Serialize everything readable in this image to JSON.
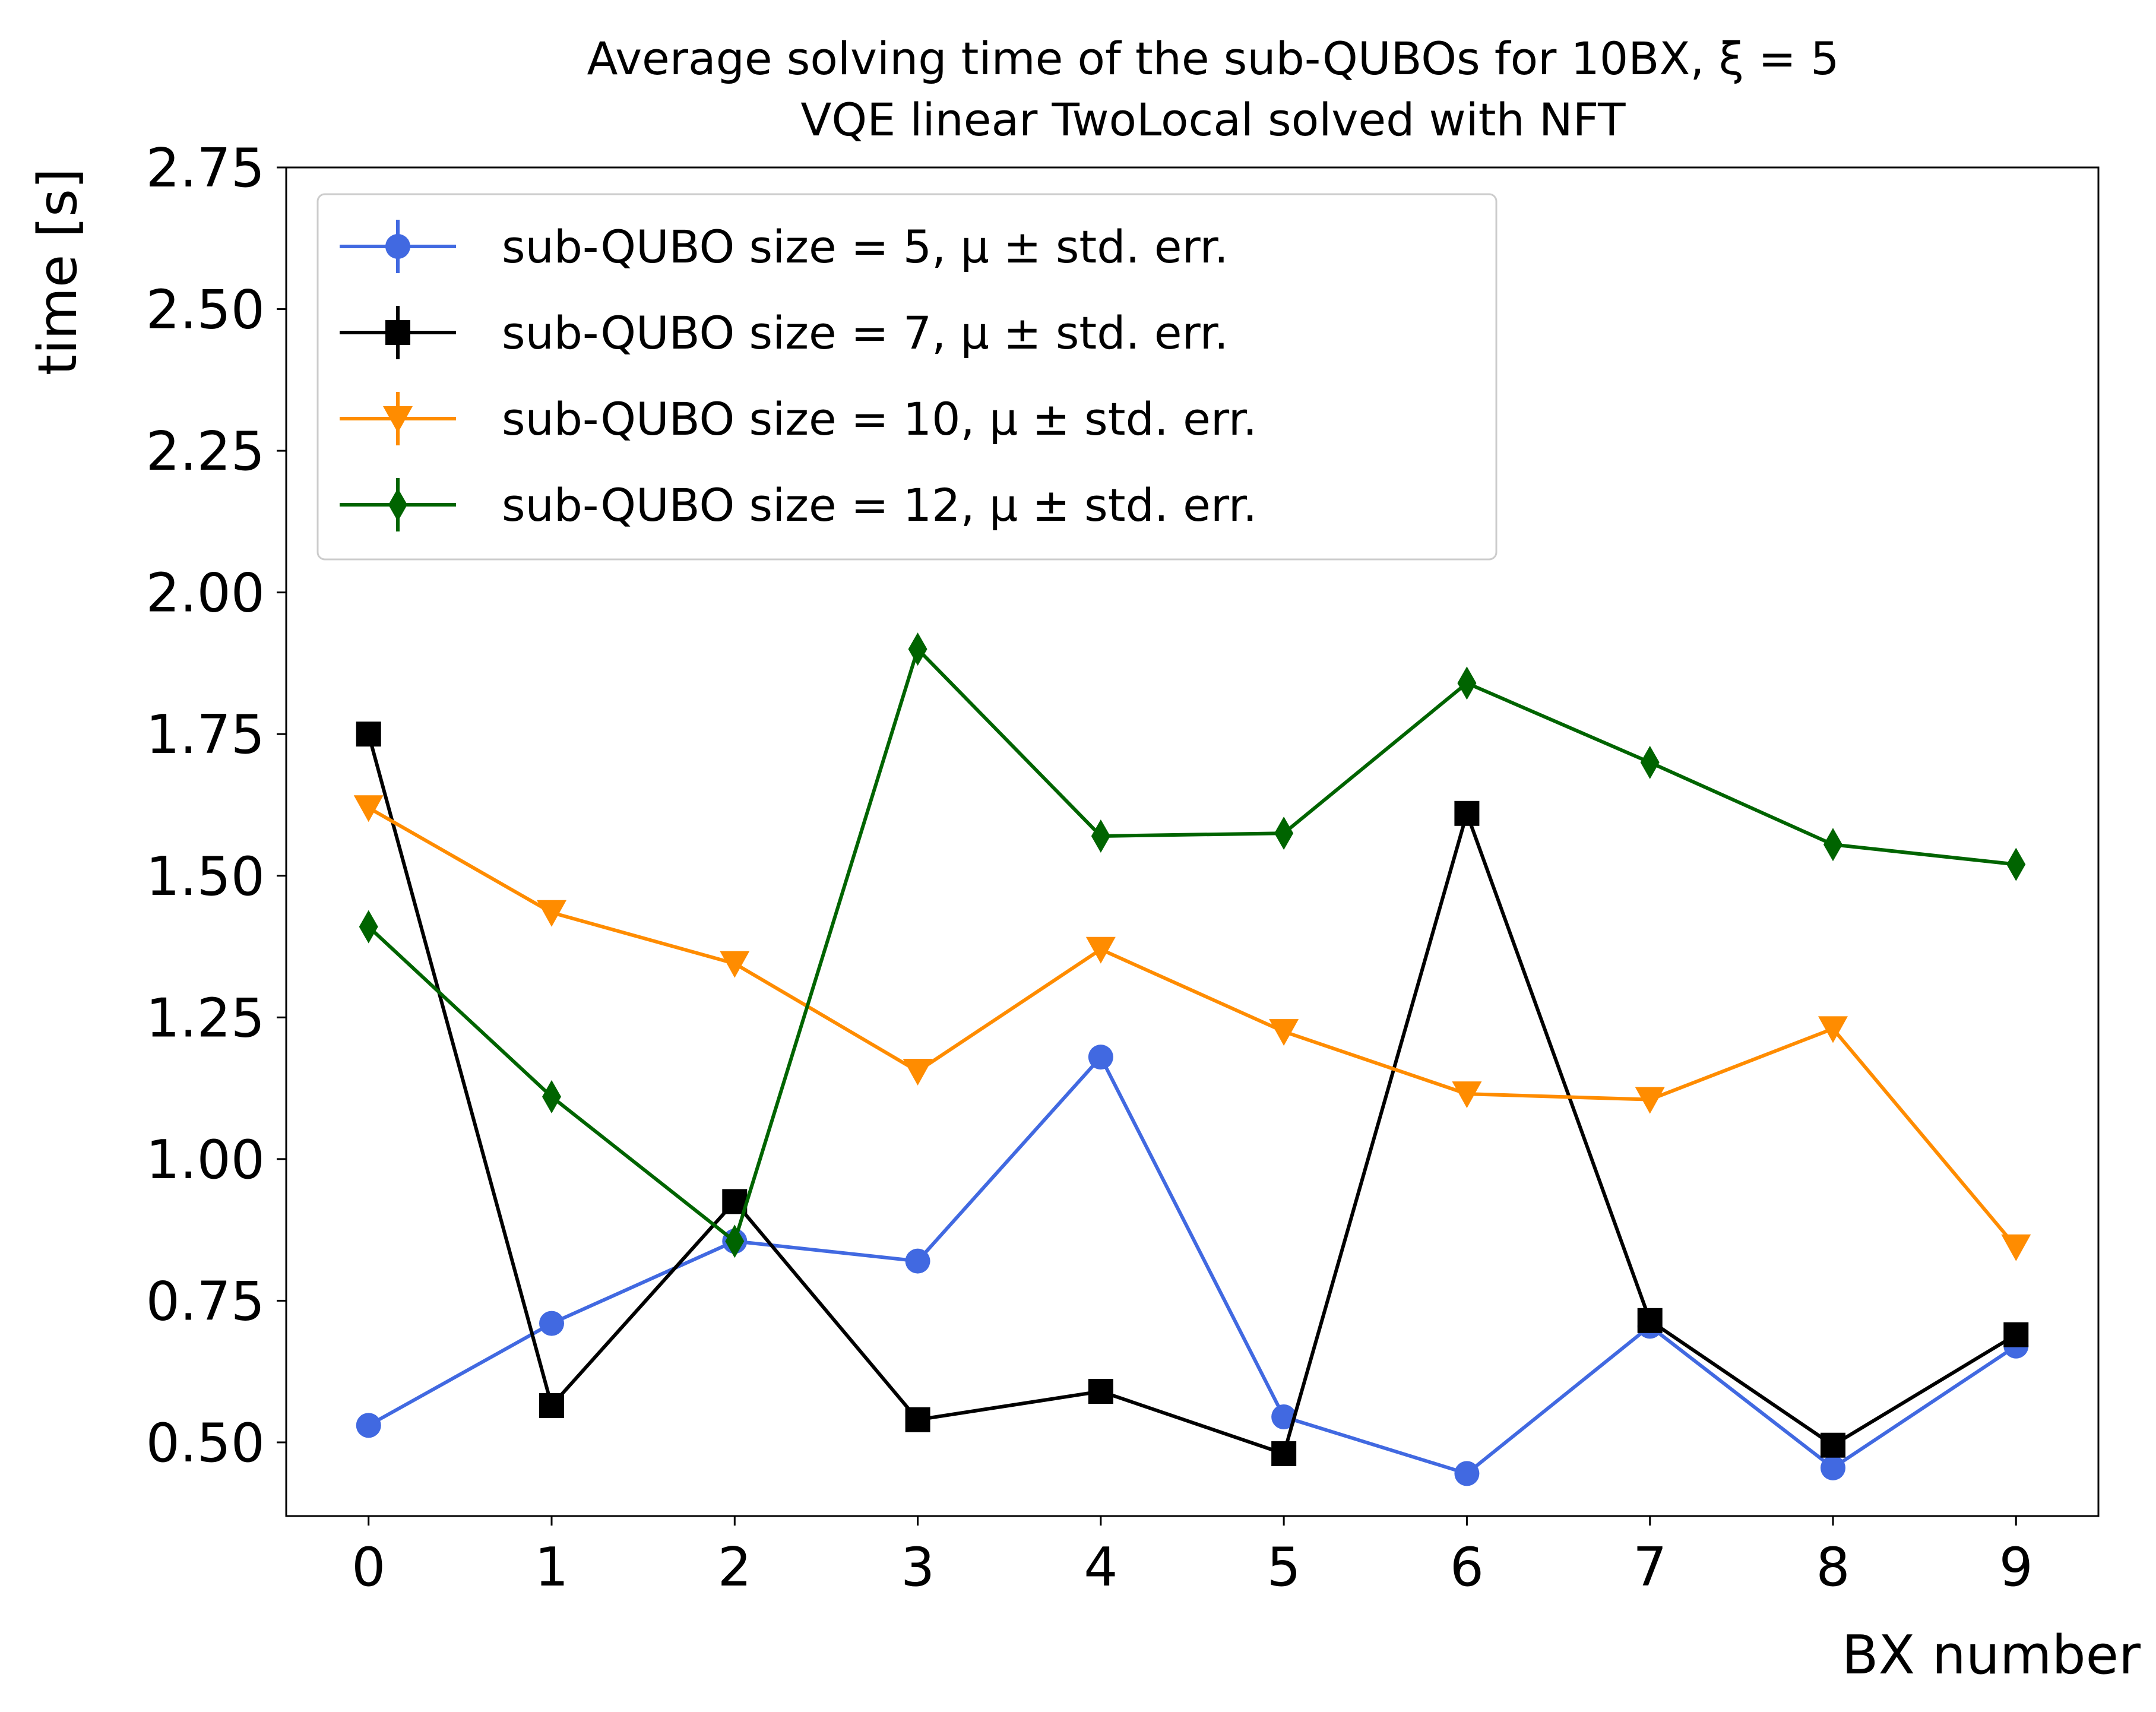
{
  "chart_data": {
    "type": "line",
    "title": "Average solving time of the sub-QUBOs for 10BX, ξ = 5",
    "subtitle": "VQE linear TwoLocal solved with NFT",
    "xlabel": "BX number",
    "ylabel": "time [s]",
    "x": [
      0,
      1,
      2,
      3,
      4,
      5,
      6,
      7,
      8,
      9
    ],
    "xticks": [
      "0",
      "1",
      "2",
      "3",
      "4",
      "5",
      "6",
      "7",
      "8",
      "9"
    ],
    "yticks": [
      "0.50",
      "0.75",
      "1.00",
      "1.25",
      "1.50",
      "1.75",
      "2.00",
      "2.25",
      "2.50",
      "2.75"
    ],
    "xlim": [
      -0.45,
      9.45
    ],
    "ylim": [
      0.37,
      2.75
    ],
    "grid": false,
    "legend_position": "top-left",
    "series": [
      {
        "name": "sub-QUBO size = 5, μ ± std. err.",
        "color": "#4169e1",
        "marker": "circle",
        "values": [
          0.53,
          0.71,
          0.855,
          0.82,
          1.18,
          0.545,
          0.445,
          0.705,
          0.455,
          0.67
        ]
      },
      {
        "name": "sub-QUBO size = 7, μ ± std. err.",
        "color": "#000000",
        "marker": "square",
        "values": [
          1.75,
          0.565,
          0.925,
          0.54,
          0.59,
          0.48,
          1.61,
          0.715,
          0.495,
          0.69
        ]
      },
      {
        "name": "sub-QUBO size = 10, μ ± std. err.",
        "color": "#ff8c00",
        "marker": "triangle-down",
        "values": [
          1.62,
          1.435,
          1.345,
          1.155,
          1.37,
          1.225,
          1.115,
          1.105,
          1.23,
          0.845
        ]
      },
      {
        "name": "sub-QUBO size = 12, μ ± std. err.",
        "color": "#006400",
        "marker": "thin-diamond",
        "values": [
          1.41,
          1.11,
          0.855,
          1.9,
          1.57,
          1.575,
          1.84,
          1.7,
          1.555,
          1.52
        ]
      }
    ]
  }
}
